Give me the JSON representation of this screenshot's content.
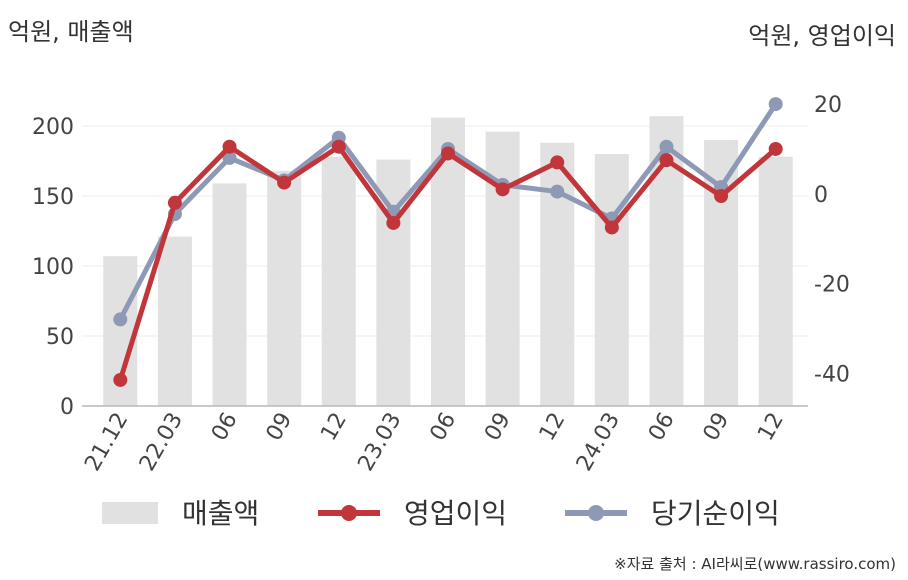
{
  "chart_data": {
    "type": "bar+line",
    "categories": [
      "21.12",
      "22.03",
      "06",
      "09",
      "12",
      "23.03",
      "06",
      "09",
      "12",
      "24.03",
      "06",
      "09",
      "12"
    ],
    "left_unit_label": "억원, 매출액",
    "right_unit_label": "억원, 영업이익",
    "y_left": {
      "range": [
        0,
        240
      ],
      "ticks": [
        0,
        50,
        100,
        150,
        200
      ]
    },
    "y_right": {
      "range": [
        -47.3,
        27.6
      ],
      "ticks": [
        -40,
        -20,
        0,
        20
      ]
    },
    "grid": true,
    "legend_position": "bottom",
    "series": [
      {
        "name": "매출액",
        "type": "bar",
        "axis": "left",
        "color": "#e1e1e1",
        "values": [
          107,
          121,
          159,
          168,
          178,
          176,
          206,
          196,
          188,
          180,
          207,
          190,
          178
        ]
      },
      {
        "name": "영업이익",
        "type": "line",
        "axis": "right",
        "color": "#c0363a",
        "values": [
          -41.5,
          -2,
          10.5,
          2.5,
          10.5,
          -6.5,
          9,
          1,
          7,
          -7.5,
          7.5,
          -0.5,
          10
        ]
      },
      {
        "name": "당기순이익",
        "type": "line",
        "axis": "right",
        "color": "#8e99b5",
        "values": [
          -28,
          -4.5,
          8,
          3,
          12.5,
          -4,
          10,
          2,
          0.5,
          -5.5,
          10.5,
          1.5,
          20
        ]
      }
    ]
  },
  "source_note": "※자료 출처 : AI라씨로(www.rassiro.com)"
}
